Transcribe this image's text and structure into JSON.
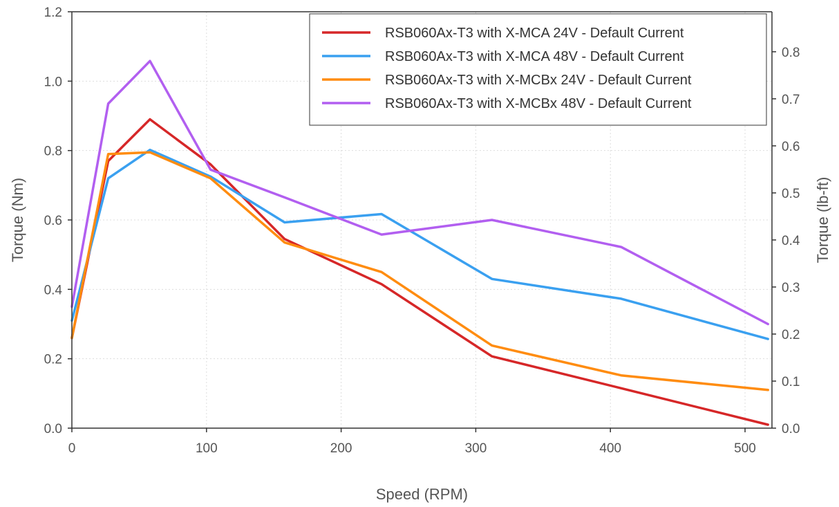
{
  "chart_data": {
    "type": "line",
    "xlabel": "Speed (RPM)",
    "ylabel": "Torque (Nm)",
    "y2label": "Torque (lb-ft)",
    "xlim": [
      0,
      520
    ],
    "ylim": [
      0,
      1.2
    ],
    "y2lim": [
      0,
      0.885
    ],
    "xticks": [
      "0",
      "100",
      "200",
      "300",
      "400",
      "500"
    ],
    "xtick_values": [
      0,
      100,
      200,
      300,
      400,
      500
    ],
    "yticks": [
      "0.0",
      "0.2",
      "0.4",
      "0.6",
      "0.8",
      "1.0",
      "1.2"
    ],
    "ytick_values": [
      0,
      0.2,
      0.4,
      0.6,
      0.8,
      1.0,
      1.2
    ],
    "y2ticks": [
      "0.0",
      "0.1",
      "0.2",
      "0.3",
      "0.4",
      "0.5",
      "0.6",
      "0.7",
      "0.8"
    ],
    "y2tick_values": [
      0,
      0.1,
      0.2,
      0.3,
      0.4,
      0.5,
      0.6,
      0.7,
      0.8
    ],
    "grid": true,
    "legend_position": "top-right",
    "series": [
      {
        "name": "RSB060Ax-T3 with X-MCA 24V - Default Current",
        "color": "#d62728",
        "x": [
          0,
          27,
          58,
          103,
          158,
          230,
          312,
          408,
          517
        ],
        "y": [
          0.26,
          0.77,
          0.89,
          0.76,
          0.545,
          0.415,
          0.207,
          0.115,
          0.01
        ]
      },
      {
        "name": "RSB060Ax-T3 with X-MCA 48V - Default Current",
        "color": "#3aa0f0",
        "x": [
          0,
          27,
          58,
          103,
          158,
          230,
          312,
          408,
          517
        ],
        "y": [
          0.31,
          0.72,
          0.802,
          0.725,
          0.593,
          0.617,
          0.43,
          0.373,
          0.257
        ]
      },
      {
        "name": "RSB060Ax-T3 with X-MCBx 24V - Default Current",
        "color": "#ff8c10",
        "x": [
          0,
          27,
          58,
          103,
          158,
          230,
          312,
          408,
          517
        ],
        "y": [
          0.26,
          0.79,
          0.795,
          0.72,
          0.535,
          0.45,
          0.238,
          0.152,
          0.11
        ]
      },
      {
        "name": "RSB060Ax-T3 with X-MCBx 48V - Default Current",
        "color": "#b25ff0",
        "x": [
          0,
          27,
          58,
          103,
          158,
          230,
          312,
          408,
          517
        ],
        "y": [
          0.35,
          0.935,
          1.058,
          0.745,
          0.665,
          0.558,
          0.6,
          0.522,
          0.3
        ]
      }
    ]
  }
}
